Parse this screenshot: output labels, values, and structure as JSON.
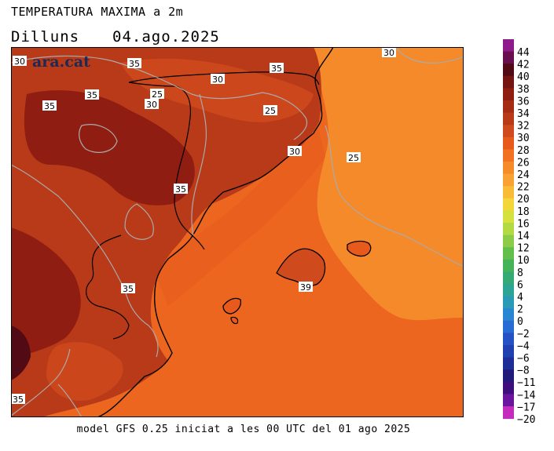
{
  "header": {
    "title": "TEMPERATURA MAXIMA a 2m",
    "day": "Dilluns",
    "date": "04.ago.2025"
  },
  "footer": {
    "text": "model GFS 0.25 iniciat a les 00 UTC del 01 ago 2025"
  },
  "logo": {
    "text": "ara.cat",
    "badge": "30"
  },
  "map": {
    "isoline_labels": [
      "35",
      "30",
      "35",
      "25",
      "30",
      "35",
      "30",
      "25",
      "30",
      "25",
      "35",
      "35",
      "39",
      "35"
    ]
  },
  "legend": {
    "levels": [
      {
        "label": "44",
        "color": "#8e1a8c"
      },
      {
        "label": "42",
        "color": "#6a0f4e"
      },
      {
        "label": "40",
        "color": "#520a14"
      },
      {
        "label": "38",
        "color": "#751410"
      },
      {
        "label": "36",
        "color": "#8f1d12"
      },
      {
        "label": "34",
        "color": "#a42c14"
      },
      {
        "label": "32",
        "color": "#b83a18"
      },
      {
        "label": "30",
        "color": "#cf4a1c"
      },
      {
        "label": "28",
        "color": "#e85a1c"
      },
      {
        "label": "26",
        "color": "#f27222"
      },
      {
        "label": "24",
        "color": "#f58c2a"
      },
      {
        "label": "22",
        "color": "#f7a232"
      },
      {
        "label": "20",
        "color": "#f9bc36"
      },
      {
        "label": "18",
        "color": "#f3d637"
      },
      {
        "label": "16",
        "color": "#d5e13d"
      },
      {
        "label": "14",
        "color": "#b4da43"
      },
      {
        "label": "12",
        "color": "#8dcc48"
      },
      {
        "label": "10",
        "color": "#63bf4c"
      },
      {
        "label": "8",
        "color": "#45b35a"
      },
      {
        "label": "6",
        "color": "#35aa75"
      },
      {
        "label": "4",
        "color": "#2ea495"
      },
      {
        "label": "2",
        "color": "#2a9ab6"
      },
      {
        "label": "0",
        "color": "#2a85d3"
      },
      {
        "label": "−2",
        "color": "#276bd5"
      },
      {
        "label": "−4",
        "color": "#2452c4"
      },
      {
        "label": "−6",
        "color": "#2140b0"
      },
      {
        "label": "−8",
        "color": "#1e2e96"
      },
      {
        "label": "−11",
        "color": "#201a7a"
      },
      {
        "label": "−14",
        "color": "#3d0e7c"
      },
      {
        "label": "−17",
        "color": "#6a14a0"
      },
      {
        "label": "−20",
        "color": "#c42cbe"
      }
    ]
  }
}
